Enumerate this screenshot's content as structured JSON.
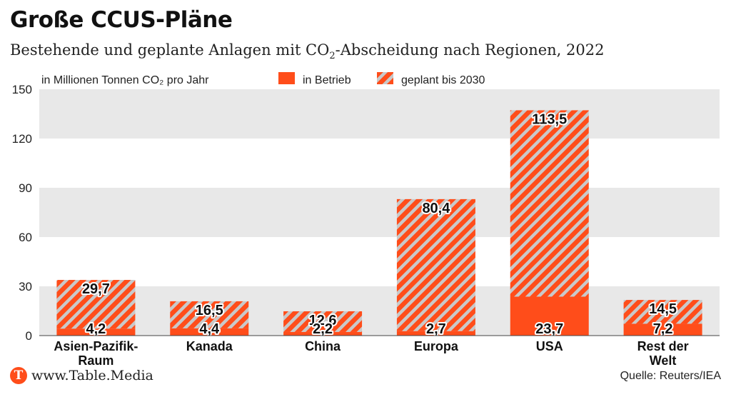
{
  "title": "Große CCUS-Pläne",
  "subtitle_pre": "Bestehende und geplante Anlagen mit CO",
  "subtitle_sub": "2",
  "subtitle_post": "-Abscheidung nach Regionen, 2022",
  "source": "Quelle: Reuters/IEA",
  "logo": {
    "letter": "T",
    "text": "www.Table.Media"
  },
  "colors": {
    "accent": "#ff4d1a",
    "stripe": "#c9c9c9",
    "band": "#e8e8e8"
  },
  "chart_data": {
    "type": "bar",
    "stacked": true,
    "unit_label": "in Millionen Tonnen CO₂ pro Jahr",
    "categories": [
      "Asien-Pazifik-Raum",
      "Kanada",
      "China",
      "Europa",
      "USA",
      "Rest der Welt"
    ],
    "category_lines": [
      [
        "Asien-Pazifik-",
        "Raum"
      ],
      [
        "Kanada"
      ],
      [
        "China"
      ],
      [
        "Europa"
      ],
      [
        "USA"
      ],
      [
        "Rest der",
        "Welt"
      ]
    ],
    "series": [
      {
        "name": "in Betrieb",
        "values": [
          4.2,
          4.4,
          2.2,
          2.7,
          23.7,
          7.2
        ],
        "labels": [
          "4,2",
          "4,4",
          "2,2",
          "2,7",
          "23,7",
          "7,2"
        ],
        "style": "solid"
      },
      {
        "name": "geplant bis 2030",
        "values": [
          29.7,
          16.5,
          12.6,
          80.4,
          113.5,
          14.5
        ],
        "labels": [
          "29,7",
          "16,5",
          "12,6",
          "80,4",
          "113,5",
          "14,5"
        ],
        "style": "hatched"
      }
    ],
    "ylim": [
      0,
      150
    ],
    "yticks": [
      0,
      30,
      60,
      90,
      120,
      150
    ],
    "grid": "alternating horizontal bands",
    "legend": "top"
  }
}
